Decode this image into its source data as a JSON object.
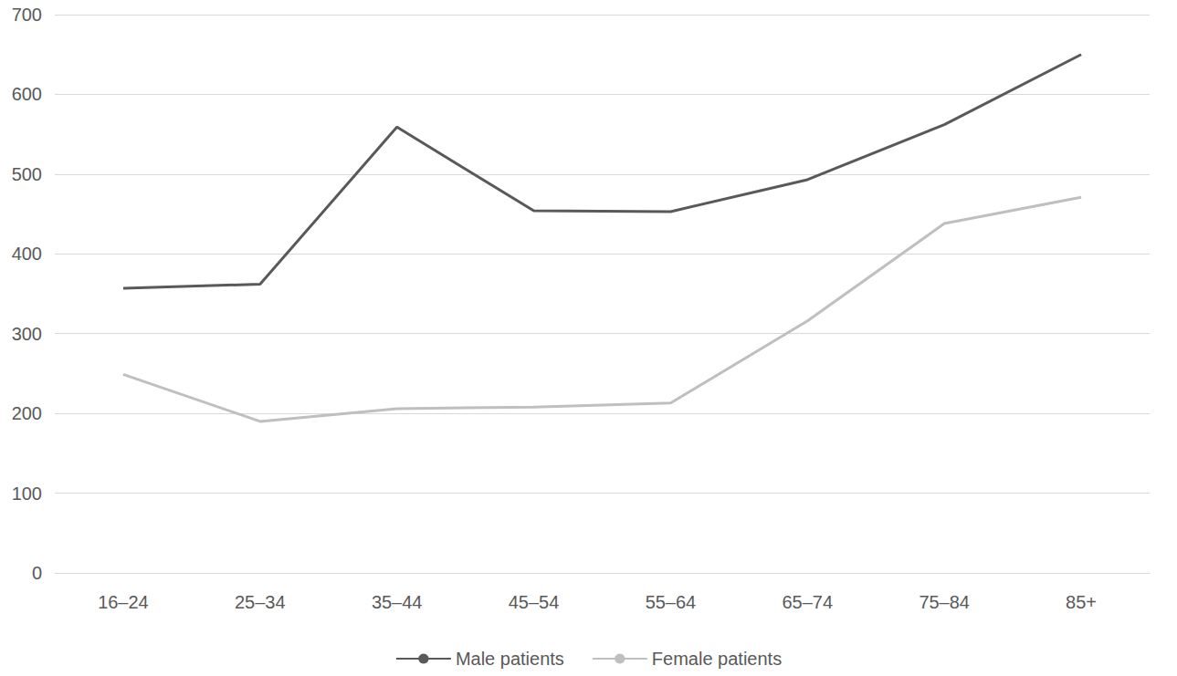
{
  "chart_data": {
    "type": "line",
    "categories": [
      "16–24",
      "25–34",
      "35–44",
      "45–54",
      "55–64",
      "65–74",
      "75–84",
      "85+"
    ],
    "series": [
      {
        "name": "Male patients",
        "color": "#595959",
        "values": [
          357,
          362,
          559,
          454,
          453,
          493,
          562,
          650
        ]
      },
      {
        "name": "Female patients",
        "color": "#bfbfbf",
        "values": [
          249,
          190,
          206,
          208,
          213,
          316,
          438,
          471
        ]
      }
    ],
    "ylim": [
      0,
      700
    ],
    "yticks": [
      0,
      100,
      200,
      300,
      400,
      500,
      600,
      700
    ],
    "grid": true,
    "legend": "bottom"
  }
}
